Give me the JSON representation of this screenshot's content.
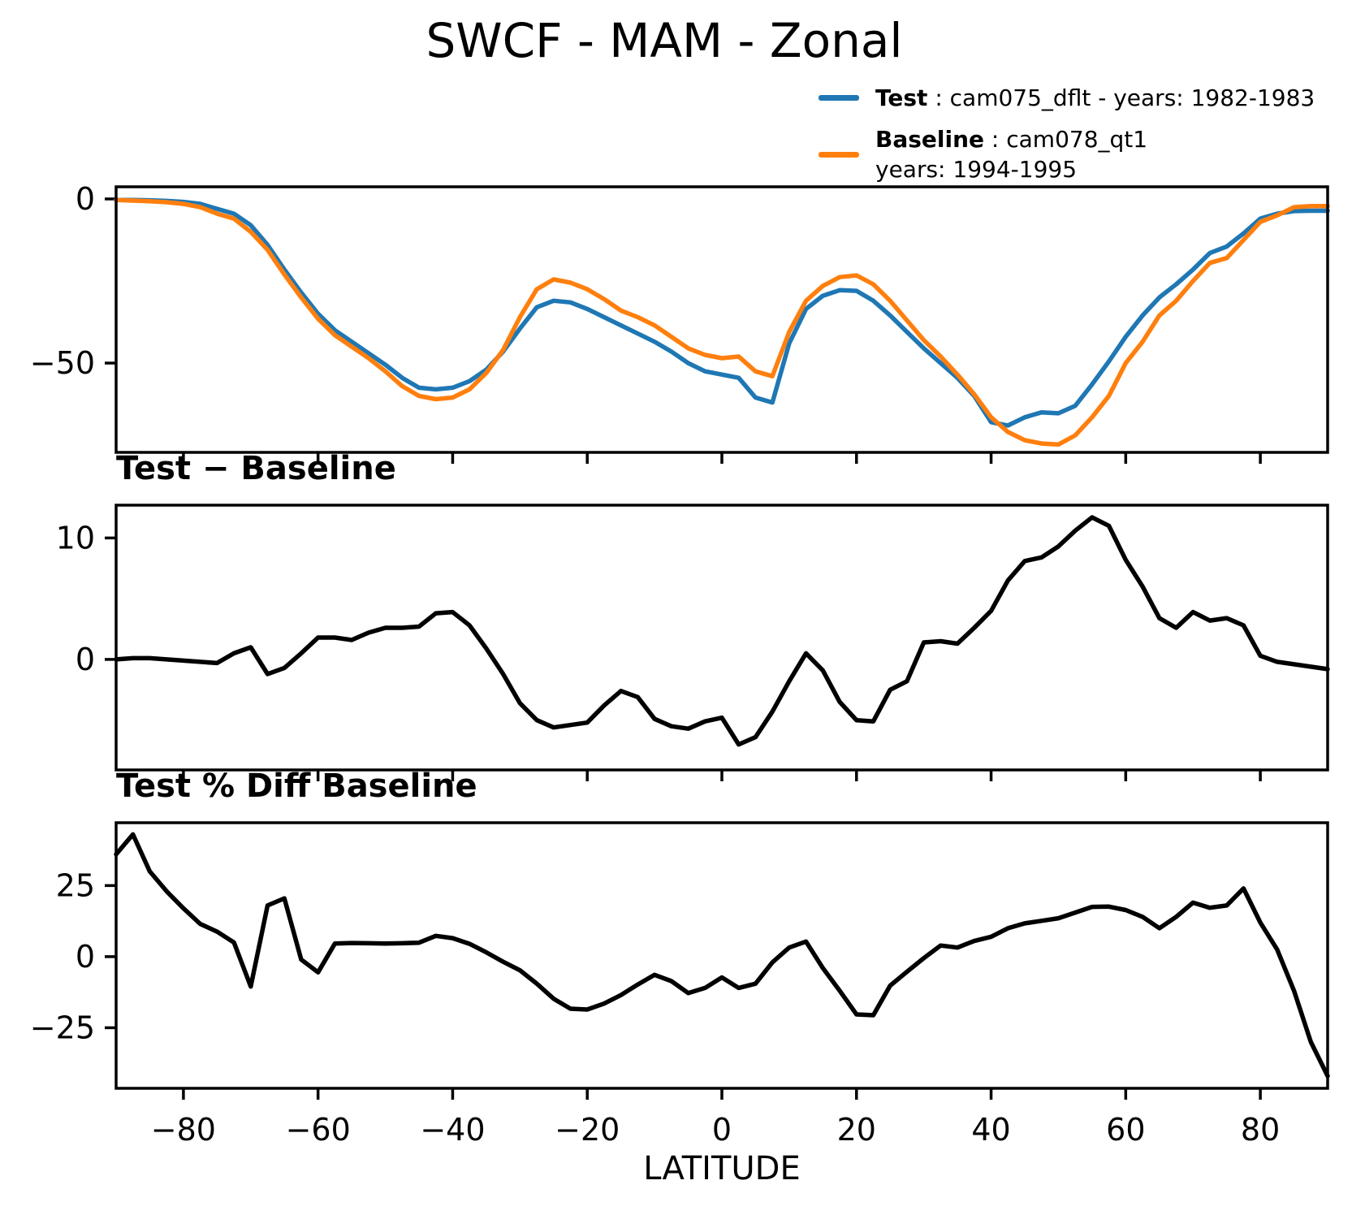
{
  "title": "SWCF - MAM - Zonal",
  "xlabel": "LATITUDE",
  "panel2_label": "Test − Baseline",
  "panel3_label": "Test % Diff Baseline",
  "legend": {
    "test": {
      "label": "Test",
      "desc": " : cam075_dflt - years: 1982-1983",
      "color": "#1f77b4"
    },
    "baseline": {
      "label": "Baseline",
      "desc": " : cam078_qt1",
      "desc2": "years: 1994-1995",
      "color": "#ff7f0e"
    }
  },
  "chart_data": {
    "type": "line",
    "x_label": "LATITUDE",
    "xlim": [
      -90,
      90
    ],
    "grid": false,
    "legend_position": "upper right",
    "x_ticks": [
      -80,
      -60,
      -40,
      -20,
      0,
      20,
      40,
      60,
      80
    ],
    "x_tick_labels": [
      "−80",
      "−60",
      "−40",
      "−20",
      "0",
      "20",
      "40",
      "60",
      "80"
    ],
    "x": [
      -90,
      -87.5,
      -85,
      -82.5,
      -80,
      -77.5,
      -75,
      -72.5,
      -70,
      -67.5,
      -65,
      -62.5,
      -60,
      -57.5,
      -55,
      -52.5,
      -50,
      -47.5,
      -45,
      -42.5,
      -40,
      -37.5,
      -35,
      -32.5,
      -30,
      -27.5,
      -25,
      -22.5,
      -20,
      -17.5,
      -15,
      -12.5,
      -10,
      -7.5,
      -5,
      -2.5,
      0,
      2.5,
      5,
      7.5,
      10,
      12.5,
      15,
      17.5,
      20,
      22.5,
      25,
      27.5,
      30,
      32.5,
      35,
      37.5,
      40,
      42.5,
      45,
      47.5,
      50,
      52.5,
      55,
      57.5,
      60,
      62.5,
      65,
      67.5,
      70,
      72.5,
      75,
      77.5,
      80,
      82.5,
      85,
      87.5,
      90
    ],
    "panels": [
      {
        "title": "SWCF - MAM - Zonal",
        "ylim": [
          -77.2,
          3.7
        ],
        "y_ticks": [
          {
            "value": 0,
            "label": "0"
          },
          {
            "value": -50,
            "label": "−50"
          }
        ],
        "series": [
          {
            "name": "Test",
            "color": "#1f77b4",
            "values": [
              -0.3,
              -0.3,
              -0.4,
              -0.6,
              -0.9,
              -1.5,
              -3.0,
              -4.5,
              -8.0,
              -14.0,
              -21.5,
              -28.5,
              -35.0,
              -40.0,
              -43.5,
              -47.0,
              -50.5,
              -54.5,
              -57.5,
              -58.0,
              -57.5,
              -55.5,
              -52.0,
              -46.5,
              -39.5,
              -33.0,
              -31.0,
              -31.5,
              -33.5,
              -36.0,
              -38.5,
              -41.0,
              -43.5,
              -46.5,
              -50.0,
              -52.5,
              -53.5,
              -54.5,
              -60.5,
              -62.0,
              -44.0,
              -33.5,
              -29.5,
              -27.8,
              -28.0,
              -31.0,
              -35.5,
              -40.5,
              -45.5,
              -50.0,
              -54.5,
              -60.0,
              -68.0,
              -69.0,
              -66.5,
              -65.0,
              -65.3,
              -63.0,
              -56.5,
              -49.5,
              -42.0,
              -35.5,
              -30.0,
              -26.0,
              -21.5,
              -16.5,
              -14.5,
              -10.5,
              -6.0,
              -4.5,
              -3.7,
              -3.6,
              -3.6
            ]
          },
          {
            "name": "Baseline",
            "color": "#ff7f0e",
            "values": [
              -0.3,
              -0.5,
              -0.7,
              -1.0,
              -1.5,
              -2.5,
              -4.5,
              -6.0,
              -10.0,
              -15.5,
              -23.0,
              -30.0,
              -36.5,
              -41.5,
              -45.0,
              -48.5,
              -52.5,
              -57.0,
              -60.0,
              -61.0,
              -60.5,
              -58.0,
              -53.0,
              -46.0,
              -36.0,
              -27.5,
              -24.5,
              -25.5,
              -27.5,
              -30.5,
              -34.0,
              -36.0,
              -38.5,
              -42.0,
              -45.5,
              -47.5,
              -48.5,
              -48.0,
              -52.5,
              -54.0,
              -40.5,
              -31.0,
              -26.5,
              -23.8,
              -23.3,
              -26.0,
              -31.0,
              -37.0,
              -43.0,
              -48.0,
              -53.5,
              -59.5,
              -66.5,
              -71.0,
              -73.5,
              -74.5,
              -74.8,
              -72.0,
              -66.5,
              -60.0,
              -50.0,
              -43.5,
              -35.5,
              -31.0,
              -25.0,
              -19.5,
              -18.0,
              -12.5,
              -7.0,
              -5.0,
              -2.5,
              -2.2,
              -2.2
            ]
          }
        ]
      },
      {
        "title": "Test − Baseline",
        "ylim": [
          -9.1,
          12.7
        ],
        "y_ticks": [
          {
            "value": 10,
            "label": "10"
          },
          {
            "value": 0,
            "label": "0"
          }
        ],
        "series": [
          {
            "name": "Test − Baseline",
            "color": "#000000",
            "values": [
              0.0,
              0.1,
              0.1,
              0.0,
              -0.1,
              -0.2,
              -0.3,
              0.5,
              1.0,
              -1.2,
              -0.7,
              0.5,
              1.8,
              1.8,
              1.6,
              2.2,
              2.6,
              2.6,
              2.7,
              3.8,
              3.9,
              2.8,
              0.9,
              -1.2,
              -3.6,
              -5.0,
              -5.6,
              -5.4,
              -5.2,
              -3.8,
              -2.6,
              -3.1,
              -4.9,
              -5.5,
              -5.7,
              -5.1,
              -4.8,
              -7.0,
              -6.4,
              -4.3,
              -1.8,
              0.5,
              -0.9,
              -3.5,
              -5.0,
              -5.1,
              -2.5,
              -1.8,
              1.4,
              1.5,
              1.3,
              2.6,
              4.0,
              6.5,
              8.1,
              8.4,
              9.3,
              10.6,
              11.7,
              11.0,
              8.2,
              6.0,
              3.4,
              2.6,
              3.9,
              3.2,
              3.4,
              2.8,
              0.3,
              -0.2,
              -0.4,
              -0.6,
              -0.8
            ]
          }
        ]
      },
      {
        "title": "Test % Diff Baseline",
        "ylim": [
          -46.3,
          47.1
        ],
        "y_ticks": [
          {
            "value": 25,
            "label": "25"
          },
          {
            "value": 0,
            "label": "0"
          },
          {
            "value": -25,
            "label": "−25"
          }
        ],
        "series": [
          {
            "name": "Test % Diff Baseline",
            "color": "#000000",
            "values": [
              36,
              43,
              30,
              23,
              17,
              11.5,
              8.8,
              5.0,
              -10.5,
              18,
              20.5,
              -1,
              -5.5,
              4.6,
              4.8,
              4.7,
              4.6,
              4.7,
              4.9,
              7.3,
              6.5,
              4.5,
              1.5,
              -1.8,
              -4.8,
              -9.5,
              -14.8,
              -18.3,
              -18.6,
              -16.5,
              -13.5,
              -9.8,
              -6.4,
              -8.6,
              -12.8,
              -11.0,
              -7.3,
              -11.0,
              -9.5,
              -2.0,
              3.2,
              5.3,
              -4.0,
              -12.0,
              -20.3,
              -20.6,
              -10.2,
              -5.3,
              -0.5,
              3.9,
              3.2,
              5.5,
              7.0,
              10.0,
              11.7,
              12.6,
              13.5,
              15.5,
              17.5,
              17.6,
              16.4,
              14.0,
              10.0,
              14.0,
              19.0,
              17.2,
              18.0,
              24.0,
              12.0,
              2.5,
              -12.0,
              -30.0,
              -42.0
            ]
          }
        ]
      }
    ]
  }
}
